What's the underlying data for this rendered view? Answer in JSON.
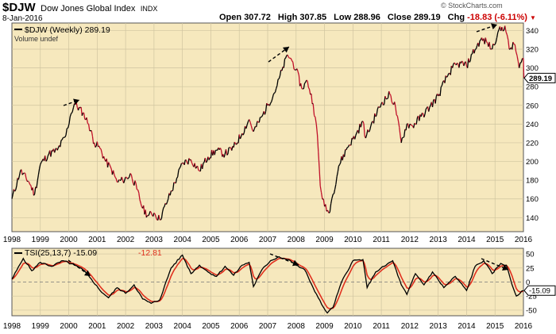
{
  "header": {
    "symbol": "$DJW",
    "name": "Dow Jones Global Index",
    "exchange": "INDX",
    "date": "8-Jan-2016",
    "open_label": "Open",
    "open": "307.72",
    "high_label": "High",
    "high": "307.85",
    "low_label": "Low",
    "low": "288.96",
    "close_label": "Close",
    "close": "289.19",
    "chg_label": "Chg",
    "chg": "-18.83 (-6.11%)",
    "chg_arrow": "▼",
    "brand": "© StockCharts.com"
  },
  "colors": {
    "panel_bg": "#f6e8bd",
    "price_up": "#000000",
    "price_down": "#c0102a",
    "tsi_line": "#000000",
    "signal_line": "#e0301e",
    "chg_red": "#cc0000"
  },
  "chart_data": [
    {
      "type": "line",
      "title": "$DJW (Weekly) 289.19",
      "subtitle": "Volume undef",
      "x_tick_labels": [
        "1998",
        "1999",
        "2000",
        "2001",
        "2002",
        "2003",
        "2004",
        "2005",
        "2006",
        "2007",
        "2008",
        "2009",
        "2010",
        "2011",
        "2012",
        "2013",
        "2014",
        "2015",
        "2016"
      ],
      "y_tick_labels": [
        "140",
        "160",
        "180",
        "200",
        "220",
        "240",
        "260",
        "280",
        "300",
        "320",
        "340"
      ],
      "ylim": [
        125,
        348
      ],
      "last_value_label": "289.19",
      "series": [
        {
          "name": "$DJW (Weekly)",
          "x": [
            1998.0,
            1998.3,
            1998.6,
            1998.8,
            1999.0,
            1999.3,
            1999.6,
            1999.9,
            2000.05,
            2000.2,
            2000.5,
            2000.7,
            2000.9,
            2001.1,
            2001.3,
            2001.5,
            2001.7,
            2001.9,
            2002.2,
            2002.4,
            2002.6,
            2002.8,
            2003.0,
            2003.2,
            2003.5,
            2003.8,
            2004.0,
            2004.3,
            2004.6,
            2004.9,
            2005.2,
            2005.5,
            2005.8,
            2006.1,
            2006.35,
            2006.5,
            2006.8,
            2007.0,
            2007.3,
            2007.5,
            2007.7,
            2007.85,
            2008.0,
            2008.2,
            2008.4,
            2008.6,
            2008.75,
            2008.85,
            2009.0,
            2009.15,
            2009.3,
            2009.5,
            2009.8,
            2010.1,
            2010.35,
            2010.45,
            2010.7,
            2011.0,
            2011.3,
            2011.5,
            2011.7,
            2011.9,
            2012.1,
            2012.4,
            2012.7,
            2013.0,
            2013.3,
            2013.5,
            2013.8,
            2014.0,
            2014.2,
            2014.5,
            2014.7,
            2014.9,
            2015.1,
            2015.35,
            2015.5,
            2015.7,
            2015.85,
            2016.0,
            2016.02
          ],
          "values": [
            160,
            190,
            178,
            165,
            197,
            208,
            212,
            228,
            248,
            262,
            252,
            240,
            220,
            214,
            200,
            192,
            178,
            180,
            186,
            170,
            150,
            142,
            145,
            138,
            160,
            182,
            198,
            202,
            190,
            205,
            212,
            208,
            215,
            230,
            245,
            232,
            248,
            260,
            278,
            297,
            314,
            308,
            298,
            278,
            286,
            262,
            228,
            174,
            152,
            145,
            165,
            195,
            215,
            228,
            243,
            225,
            243,
            262,
            272,
            258,
            220,
            240,
            238,
            248,
            258,
            270,
            290,
            300,
            305,
            302,
            315,
            330,
            328,
            320,
            338,
            345,
            320,
            325,
            300,
            310,
            289.19
          ]
        },
        {
          "name": "TSI(25,13,7)",
          "type": "line",
          "values_label": "-15.09",
          "signal_label": "-12.81",
          "y_tick_labels": [
            "50",
            "25",
            "0",
            "-25",
            "-50"
          ],
          "ylim": [
            -60,
            60
          ],
          "last_value_label": "-15.09",
          "x": [
            1998.0,
            1998.4,
            1998.7,
            1999.0,
            1999.4,
            1999.8,
            2000.2,
            2000.5,
            2000.8,
            2001.1,
            2001.4,
            2001.7,
            2002.0,
            2002.3,
            2002.6,
            2002.9,
            2003.2,
            2003.6,
            2004.0,
            2004.3,
            2004.6,
            2004.9,
            2005.2,
            2005.5,
            2005.8,
            2006.1,
            2006.35,
            2006.5,
            2006.8,
            2007.1,
            2007.4,
            2007.8,
            2008.0,
            2008.3,
            2008.6,
            2008.9,
            2009.1,
            2009.3,
            2009.6,
            2010.0,
            2010.35,
            2010.5,
            2010.8,
            2011.1,
            2011.4,
            2011.7,
            2011.9,
            2012.2,
            2012.5,
            2012.8,
            2013.2,
            2013.6,
            2014.0,
            2014.3,
            2014.6,
            2014.9,
            2015.2,
            2015.4,
            2015.6,
            2015.75,
            2016.0
          ],
          "values": [
            5,
            42,
            20,
            35,
            28,
            38,
            30,
            22,
            5,
            -15,
            -28,
            -10,
            -20,
            -5,
            -30,
            -38,
            -32,
            25,
            48,
            15,
            30,
            18,
            10,
            28,
            12,
            30,
            35,
            -8,
            22,
            38,
            45,
            38,
            30,
            22,
            -10,
            -40,
            -55,
            -45,
            0,
            38,
            40,
            -10,
            18,
            28,
            38,
            -5,
            -22,
            15,
            -5,
            18,
            -10,
            10,
            -15,
            28,
            38,
            15,
            33,
            30,
            -5,
            -25,
            -15.09
          ]
        }
      ]
    }
  ]
}
